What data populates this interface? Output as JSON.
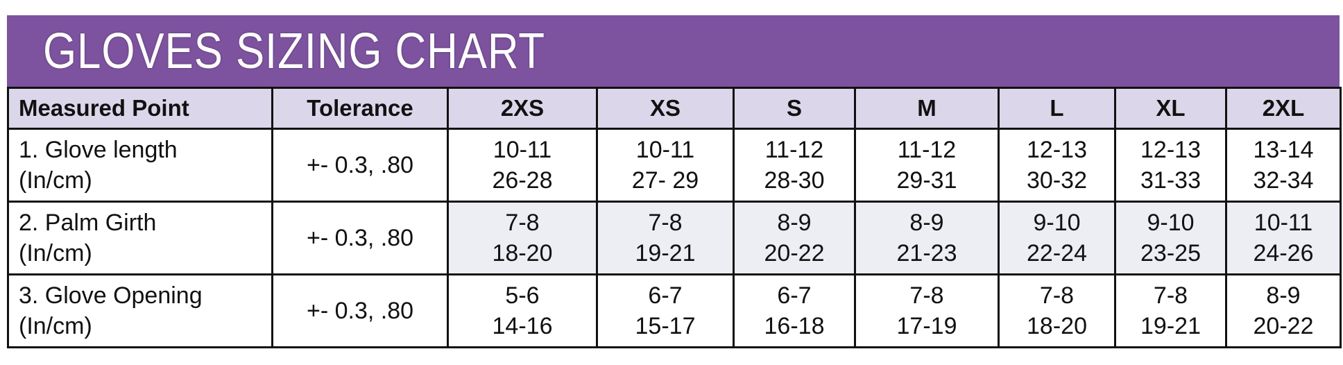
{
  "title": "GLOVES SIZING CHART",
  "headers": [
    "Measured Point",
    "Tolerance",
    "2XS",
    "XS",
    "S",
    "M",
    "L",
    "XL",
    "2XL"
  ],
  "rows": [
    {
      "point": [
        "1. Glove length",
        "(In/cm)"
      ],
      "tolerance": "+- 0.3, .80",
      "sizes": [
        [
          "10-11",
          "26-28"
        ],
        [
          "10-11",
          "27- 29"
        ],
        [
          "11-12",
          "28-30"
        ],
        [
          "11-12",
          "29-31"
        ],
        [
          "12-13",
          "30-32"
        ],
        [
          "12-13",
          "31-33"
        ],
        [
          "13-14",
          "32-34"
        ]
      ]
    },
    {
      "point": [
        "2. Palm Girth",
        "(In/cm)"
      ],
      "tolerance": "+- 0.3, .80",
      "sizes": [
        [
          "7-8",
          "18-20"
        ],
        [
          "7-8",
          "19-21"
        ],
        [
          "8-9",
          "20-22"
        ],
        [
          "8-9",
          "21-23"
        ],
        [
          "9-10",
          "22-24"
        ],
        [
          "9-10",
          "23-25"
        ],
        [
          "10-11",
          "24-26"
        ]
      ]
    },
    {
      "point": [
        "3. Glove Opening",
        "(In/cm)"
      ],
      "tolerance": "+- 0.3, .80",
      "sizes": [
        [
          "5-6",
          "14-16"
        ],
        [
          "6-7",
          "15-17"
        ],
        [
          "6-7",
          "16-18"
        ],
        [
          "7-8",
          "17-19"
        ],
        [
          "7-8",
          "18-20"
        ],
        [
          "7-8",
          "19-21"
        ],
        [
          "8-9",
          "20-22"
        ]
      ]
    }
  ],
  "colors": {
    "banner": "#7d529e",
    "header_bg": "#dcd6ea",
    "alt_row_bg": "#eceef4"
  }
}
